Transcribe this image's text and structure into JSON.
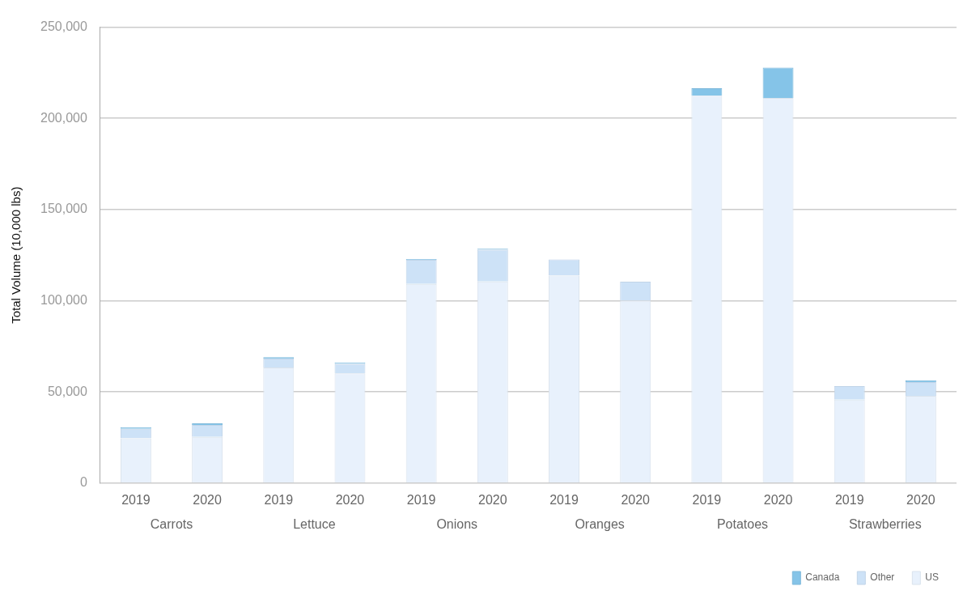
{
  "chart_data": {
    "type": "bar",
    "stacked": true,
    "ylabel": "Total Volume (10,000 lbs)",
    "categories": [
      "2019",
      "2020",
      "2019",
      "2020",
      "2019",
      "2020",
      "2019",
      "2020",
      "2019",
      "2020",
      "2019",
      "2020"
    ],
    "annotations": [
      "Carrots",
      "Lettuce",
      "Onions",
      "Oranges",
      "Potatoes",
      "Strawberries"
    ],
    "series": [
      {
        "name": "US",
        "color": "#e8f1fc",
        "values": [
          24600,
          25300,
          63400,
          60200,
          109200,
          110600,
          113800,
          100100,
          212400,
          211200,
          45700,
          47900
        ]
      },
      {
        "name": "Other",
        "color": "#cde2f7",
        "values": [
          5200,
          6600,
          4900,
          5200,
          13200,
          17400,
          8900,
          10300,
          null,
          null,
          7500,
          7500
        ]
      },
      {
        "name": "Canada",
        "color": "#85c4e8",
        "values": [
          800,
          900,
          700,
          800,
          500,
          500,
          null,
          null,
          4100,
          16700,
          null,
          1000
        ]
      }
    ],
    "ylim": [
      0,
      250000
    ],
    "yticks": [
      {
        "value": 0,
        "label": "0"
      },
      {
        "value": 50000,
        "label": "50,000"
      },
      {
        "value": 100000,
        "label": "100,000"
      },
      {
        "value": 150000,
        "label": "150,000"
      },
      {
        "value": 200000,
        "label": "200,000"
      },
      {
        "value": 250000,
        "label": "250,000"
      }
    ],
    "grid": "y",
    "legend": "bottom right"
  }
}
